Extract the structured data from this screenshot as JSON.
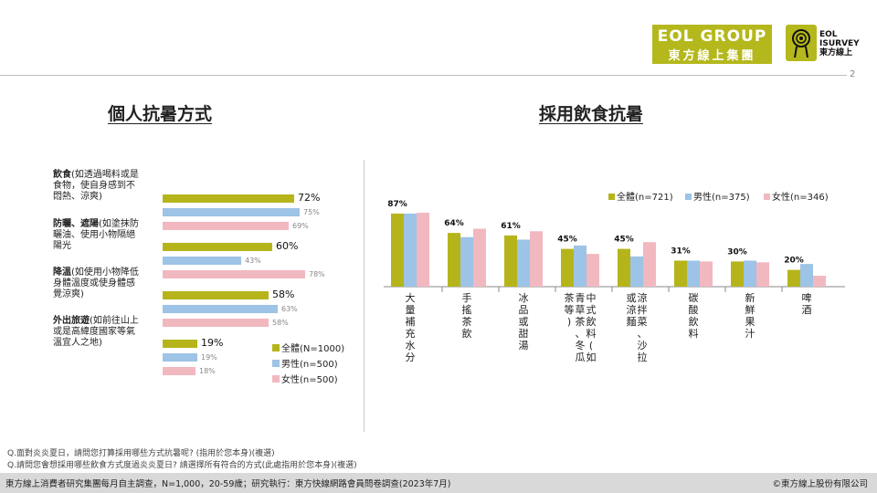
{
  "header": {
    "logo_eol_line1": "EOL GROUP",
    "logo_eol_line2": "東方線上集團",
    "logo_isurvey_line1": "EOL",
    "logo_isurvey_line2": "ISURVEY",
    "logo_isurvey_line3": "東方線上",
    "page_number": "2"
  },
  "left": {
    "title": "個人抗暑方式"
  },
  "right": {
    "title": "採用飲食抗暑"
  },
  "colors": {
    "total": "#b5b51b",
    "male": "#9dc3e6",
    "female": "#f1b8c0"
  },
  "chart_data": [
    {
      "type": "bar",
      "orientation": "horizontal",
      "categories": [
        {
          "bold": "飲食",
          "rest": "(如透過喝料或是食物，使自身感到不悶熱、涼爽)"
        },
        {
          "bold": "防曬、遮陽",
          "rest": "(如塗抹防曬油、使用小物隔絕陽光"
        },
        {
          "bold": "降溫",
          "rest": "(如使用小物降低身體溫度或使身體感覺涼爽)"
        },
        {
          "bold": "外出旅遊",
          "rest": "(如前往山上或是高緯度國家等氣溫宜人之地)"
        }
      ],
      "series": [
        {
          "name": "全體(N=1000)",
          "values": [
            72,
            60,
            58,
            19
          ],
          "labels": [
            "72%",
            "60%",
            "58%",
            "19%"
          ]
        },
        {
          "name": "男性(n=500)",
          "values": [
            75,
            43,
            63,
            19
          ],
          "labels": [
            "75%",
            "43%",
            "63%",
            "19%"
          ]
        },
        {
          "name": "女性(n=500)",
          "values": [
            69,
            78,
            58,
            18
          ],
          "labels": [
            "69%",
            "78%",
            "58%",
            "18%"
          ]
        }
      ],
      "xlim": [
        0,
        100
      ],
      "legend": "bottom-right"
    },
    {
      "type": "bar",
      "orientation": "vertical",
      "categories": [
        "大量補充水分",
        "手搖茶飲",
        "冰品或甜湯",
        "中式飲料(如青草茶、冬瓜茶等)",
        "涼拌菜、沙拉或涼麵",
        "碳酸飲料",
        "新鮮果汁",
        "啤酒"
      ],
      "total_labels": [
        "87%",
        "64%",
        "61%",
        "45%",
        "45%",
        "31%",
        "30%",
        "20%"
      ],
      "series": [
        {
          "name": "全體(n=721)",
          "values": [
            87,
            64,
            61,
            45,
            45,
            31,
            30,
            20
          ]
        },
        {
          "name": "男性(n=375)",
          "values": [
            87,
            59,
            56,
            49,
            36,
            31,
            31,
            27
          ]
        },
        {
          "name": "女性(n=346)",
          "values": [
            88,
            69,
            66,
            39,
            53,
            30,
            29,
            13
          ]
        }
      ],
      "ylim": [
        0,
        100
      ],
      "legend": "top-right"
    }
  ],
  "footer": {
    "q1": "Q.面對炎炎夏日，請問您打算採用哪些方式抗暑呢? (指用於您本身)(複選)",
    "q2": "Q.請問您會想採用哪些飲食方式度過炎炎夏日? 請選擇所有符合的方式(此處指用於您本身)(複選)",
    "source": "東方線上消費者研究集團每月自主調查，N=1,000，20-59歲；研究執行：東方快線網路會員問卷調查(2023年7月)",
    "copyright": "©東方線上股份有限公司"
  }
}
